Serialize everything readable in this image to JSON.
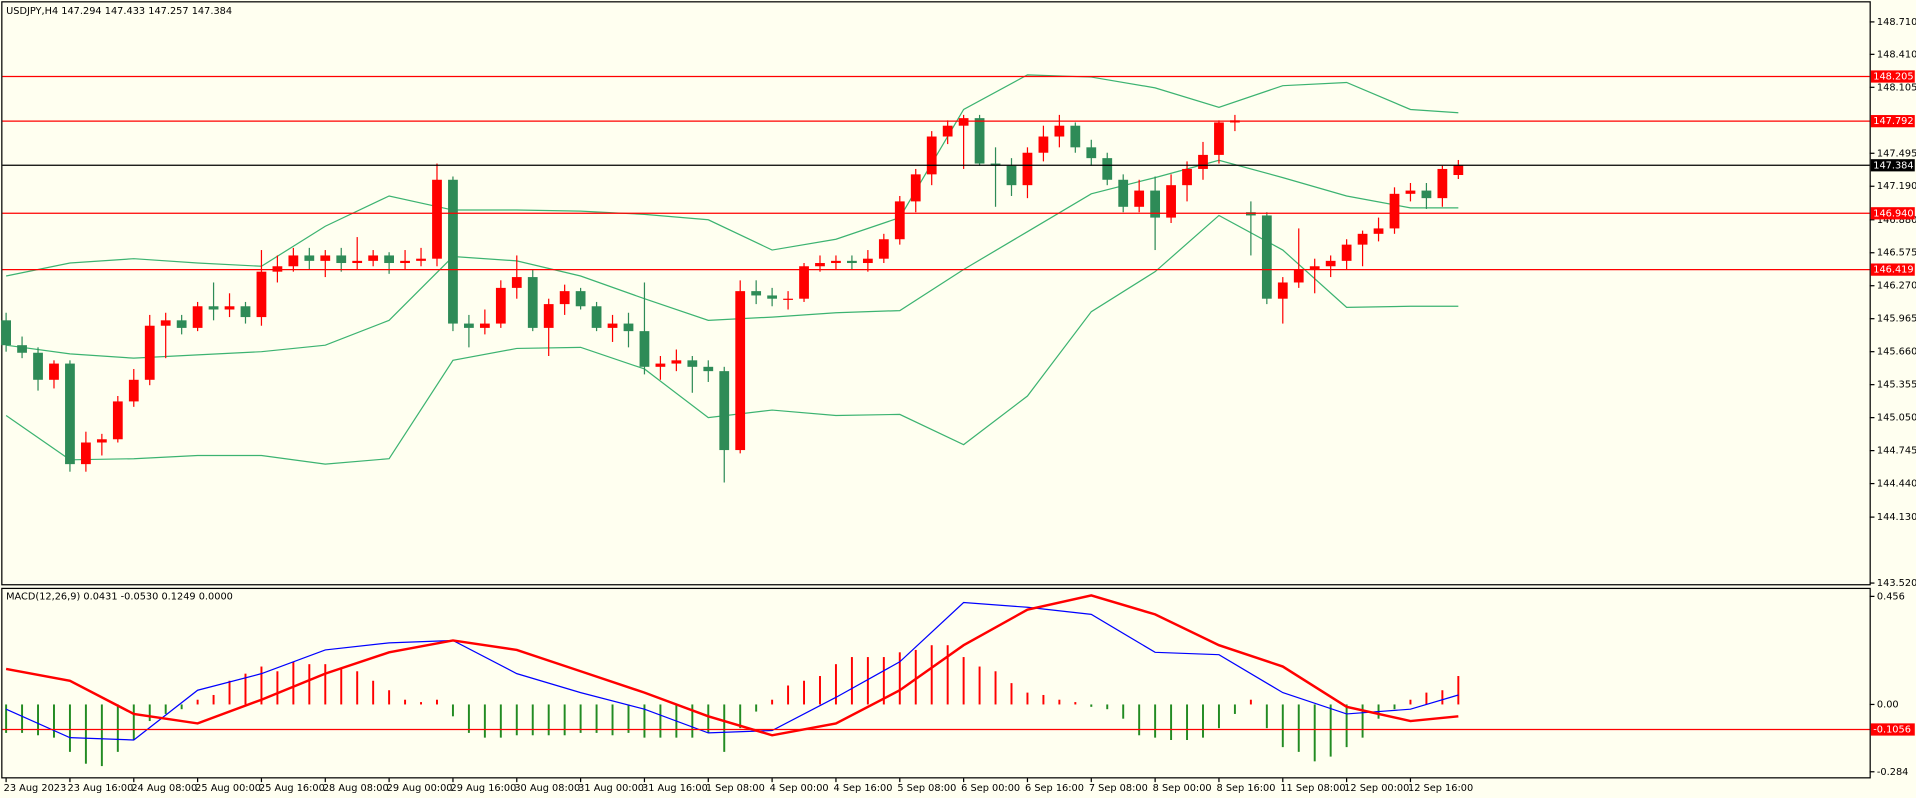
{
  "chart_data": [
    {
      "type": "candlestick",
      "title": "USDJPY,H4  147.294 147.433 147.257 147.384",
      "up_color": "#ff0000",
      "down_color": "#2e8b57",
      "candles": [
        [
          145.95,
          146.02,
          145.66,
          145.72
        ],
        [
          145.72,
          145.8,
          145.6,
          145.65
        ],
        [
          145.65,
          145.7,
          145.3,
          145.4
        ],
        [
          145.4,
          145.58,
          145.32,
          145.55
        ],
        [
          145.55,
          145.58,
          144.55,
          144.62
        ],
        [
          144.62,
          144.92,
          144.55,
          144.82
        ],
        [
          144.82,
          144.9,
          144.7,
          144.85
        ],
        [
          144.85,
          145.25,
          144.82,
          145.2
        ],
        [
          145.2,
          145.5,
          145.15,
          145.4
        ],
        [
          145.4,
          146.0,
          145.35,
          145.9
        ],
        [
          145.9,
          146.02,
          145.6,
          145.95
        ],
        [
          145.95,
          146.0,
          145.82,
          145.88
        ],
        [
          145.88,
          146.12,
          145.85,
          146.08
        ],
        [
          146.08,
          146.3,
          145.95,
          146.05
        ],
        [
          146.05,
          146.2,
          145.98,
          146.08
        ],
        [
          146.08,
          146.12,
          145.92,
          145.98
        ],
        [
          145.98,
          146.6,
          145.9,
          146.4
        ],
        [
          146.4,
          146.55,
          146.3,
          146.45
        ],
        [
          146.45,
          146.62,
          146.4,
          146.55
        ],
        [
          146.55,
          146.62,
          146.42,
          146.5
        ],
        [
          146.5,
          146.6,
          146.35,
          146.55
        ],
        [
          146.55,
          146.62,
          146.4,
          146.48
        ],
        [
          146.48,
          146.72,
          146.42,
          146.5
        ],
        [
          146.5,
          146.6,
          146.45,
          146.55
        ],
        [
          146.55,
          146.58,
          146.38,
          146.48
        ],
        [
          146.48,
          146.6,
          146.42,
          146.5
        ],
        [
          146.5,
          146.62,
          146.45,
          146.52
        ],
        [
          146.52,
          147.4,
          146.45,
          147.25
        ],
        [
          147.25,
          147.28,
          145.85,
          145.92
        ],
        [
          145.92,
          146.0,
          145.7,
          145.88
        ],
        [
          145.88,
          146.05,
          145.82,
          145.92
        ],
        [
          145.92,
          146.32,
          145.88,
          146.25
        ],
        [
          146.25,
          146.55,
          146.15,
          146.35
        ],
        [
          146.35,
          146.42,
          145.85,
          145.88
        ],
        [
          145.88,
          146.15,
          145.62,
          146.1
        ],
        [
          146.1,
          146.28,
          146.0,
          146.22
        ],
        [
          146.22,
          146.25,
          146.05,
          146.08
        ],
        [
          146.08,
          146.12,
          145.85,
          145.88
        ],
        [
          145.88,
          146.0,
          145.75,
          145.92
        ],
        [
          145.92,
          146.02,
          145.7,
          145.85
        ],
        [
          145.85,
          146.3,
          145.45,
          145.52
        ],
        [
          145.52,
          145.62,
          145.4,
          145.55
        ],
        [
          145.55,
          145.68,
          145.48,
          145.58
        ],
        [
          145.58,
          145.62,
          145.28,
          145.52
        ],
        [
          145.52,
          145.58,
          145.38,
          145.48
        ],
        [
          145.48,
          145.52,
          144.45,
          144.75
        ],
        [
          144.75,
          146.32,
          144.72,
          146.22
        ],
        [
          146.22,
          146.32,
          146.1,
          146.18
        ],
        [
          146.18,
          146.25,
          146.08,
          146.15
        ],
        [
          146.15,
          146.22,
          146.05,
          146.15
        ],
        [
          146.15,
          146.48,
          146.12,
          146.45
        ],
        [
          146.45,
          146.55,
          146.4,
          146.48
        ],
        [
          146.48,
          146.55,
          146.42,
          146.5
        ],
        [
          146.5,
          146.55,
          146.42,
          146.48
        ],
        [
          146.48,
          146.6,
          146.4,
          146.52
        ],
        [
          146.52,
          146.75,
          146.48,
          146.7
        ],
        [
          146.7,
          147.1,
          146.65,
          147.05
        ],
        [
          147.05,
          147.35,
          146.95,
          147.3
        ],
        [
          147.3,
          147.7,
          147.2,
          147.65
        ],
        [
          147.65,
          147.8,
          147.58,
          147.75
        ],
        [
          147.75,
          147.85,
          147.35,
          147.82
        ],
        [
          147.82,
          147.85,
          147.38,
          147.4
        ],
        [
          147.4,
          147.55,
          147.0,
          147.38
        ],
        [
          147.38,
          147.45,
          147.1,
          147.2
        ],
        [
          147.2,
          147.55,
          147.08,
          147.5
        ],
        [
          147.5,
          147.75,
          147.42,
          147.65
        ],
        [
          147.65,
          147.85,
          147.55,
          147.75
        ],
        [
          147.75,
          147.78,
          147.5,
          147.55
        ],
        [
          147.55,
          147.62,
          147.38,
          147.45
        ],
        [
          147.45,
          147.5,
          147.2,
          147.25
        ],
        [
          147.25,
          147.3,
          146.95,
          147.0
        ],
        [
          147.0,
          147.25,
          146.95,
          147.15
        ],
        [
          147.15,
          147.28,
          146.6,
          146.9
        ],
        [
          146.9,
          147.3,
          146.85,
          147.2
        ],
        [
          147.2,
          147.42,
          147.05,
          147.35
        ],
        [
          147.35,
          147.6,
          147.25,
          147.48
        ],
        [
          147.48,
          147.8,
          147.4,
          147.78
        ],
        [
          147.78,
          147.85,
          147.7,
          147.8
        ],
        [
          146.95,
          147.05,
          146.55,
          146.92
        ],
        [
          146.92,
          146.95,
          146.1,
          146.15
        ],
        [
          146.15,
          146.35,
          145.92,
          146.3
        ],
        [
          146.3,
          146.8,
          146.25,
          146.42
        ],
        [
          146.42,
          146.52,
          146.2,
          146.45
        ],
        [
          146.45,
          146.55,
          146.35,
          146.5
        ],
        [
          146.5,
          146.7,
          146.42,
          146.65
        ],
        [
          146.65,
          146.78,
          146.45,
          146.75
        ],
        [
          146.75,
          146.9,
          146.68,
          146.8
        ],
        [
          146.8,
          147.18,
          146.75,
          147.12
        ],
        [
          147.12,
          147.22,
          147.05,
          147.15
        ],
        [
          147.15,
          147.22,
          146.98,
          147.08
        ],
        [
          147.08,
          147.38,
          147.0,
          147.35
        ],
        [
          147.294,
          147.433,
          147.257,
          147.384
        ]
      ],
      "x": [
        0,
        4,
        8,
        12,
        16,
        20,
        24,
        28,
        32,
        36,
        40,
        44,
        48,
        52,
        56,
        60,
        64,
        68,
        72,
        76,
        80,
        84,
        88,
        91
      ],
      "series": [
        {
          "color": "#3cb371",
          "values": [
            146.36,
            146.48,
            146.52,
            146.48,
            146.45,
            146.82,
            147.1,
            146.97,
            146.97,
            146.96,
            146.93,
            146.88,
            146.6,
            146.7,
            146.9,
            147.9,
            148.22,
            148.2,
            148.1,
            147.92,
            148.12,
            148.15,
            147.9,
            147.87
          ]
        },
        {
          "color": "#3cb371",
          "values": [
            145.72,
            145.64,
            145.6,
            145.63,
            145.66,
            145.72,
            145.95,
            146.54,
            146.5,
            146.36,
            146.15,
            145.95,
            145.98,
            146.02,
            146.04,
            146.42,
            146.77,
            147.12,
            147.27,
            147.43,
            147.27,
            147.1,
            146.99,
            146.99
          ]
        },
        {
          "color": "#3cb371",
          "values": [
            145.07,
            144.66,
            144.67,
            144.7,
            144.7,
            144.62,
            144.67,
            145.58,
            145.69,
            145.7,
            145.5,
            145.05,
            145.12,
            145.07,
            145.08,
            144.8,
            145.25,
            146.03,
            146.4,
            146.92,
            146.6,
            146.07,
            146.08,
            146.08
          ]
        }
      ],
      "ylim": [
        143.51,
        148.89
      ],
      "yticks": [
        {
          "value": 148.71,
          "label": "148.710"
        },
        {
          "value": 148.41,
          "label": "148.410"
        },
        148.105,
        147.495,
        {
          "value": 147.19,
          "label": "147.190"
        },
        {
          "value": 146.88,
          "label": "146.880"
        },
        146.575,
        {
          "value": 146.27,
          "label": "146.270"
        },
        145.965,
        {
          "value": 145.66,
          "label": "145.660"
        },
        145.355,
        {
          "value": 145.05,
          "label": "145.050"
        },
        144.745,
        {
          "value": 144.44,
          "label": "144.440"
        },
        {
          "value": 144.13,
          "label": "144.130"
        },
        {
          "value": 143.52,
          "label": "143.520"
        }
      ],
      "levels": [
        148.205,
        147.792,
        {
          "value": 146.94,
          "label": "146.940"
        },
        146.419
      ],
      "level_color": "#ff0000",
      "price": 147.384,
      "price_color": "#000000",
      "time_labels": [
        "23 Aug 2023",
        "23 Aug 16:00",
        "24 Aug 08:00",
        "25 Aug 00:00",
        "25 Aug 16:00",
        "28 Aug 08:00",
        "29 Aug 00:00",
        "29 Aug 16:00",
        "30 Aug 08:00",
        "31 Aug 00:00",
        "31 Aug 16:00",
        "1 Sep 08:00",
        "4 Sep 00:00",
        "4 Sep 16:00",
        "5 Sep 08:00",
        "6 Sep 00:00",
        "6 Sep 16:00",
        "7 Sep 08:00",
        "8 Sep 00:00",
        "8 Sep 16:00",
        "11 Sep 08:00",
        "12 Sep 00:00",
        "12 Sep 16:00"
      ]
    },
    {
      "type": "macd",
      "title": "MACD(12,26,9) 0.0431 -0.0530 0.1249 0.0000",
      "up_color": "#ff0000",
      "down_color": "#228b22",
      "histogram": [
        -0.12,
        -0.12,
        -0.13,
        -0.14,
        -0.2,
        -0.25,
        -0.26,
        -0.2,
        -0.15,
        -0.07,
        -0.04,
        -0.02,
        0.02,
        0.04,
        0.1,
        0.13,
        0.16,
        0.14,
        0.18,
        0.17,
        0.17,
        0.15,
        0.14,
        0.1,
        0.06,
        0.02,
        0.01,
        0.02,
        -0.05,
        -0.12,
        -0.14,
        -0.14,
        -0.13,
        -0.13,
        -0.13,
        -0.13,
        -0.12,
        -0.12,
        -0.13,
        -0.12,
        -0.14,
        -0.14,
        -0.14,
        -0.14,
        -0.12,
        -0.2,
        -0.1,
        -0.03,
        0.02,
        0.08,
        0.1,
        0.12,
        0.17,
        0.2,
        0.2,
        0.2,
        0.22,
        0.23,
        0.25,
        0.25,
        0.2,
        0.16,
        0.14,
        0.09,
        0.05,
        0.04,
        0.02,
        0.01,
        -0.01,
        -0.02,
        -0.06,
        -0.13,
        -0.14,
        -0.15,
        -0.15,
        -0.14,
        -0.1,
        -0.04,
        0.02,
        -0.1,
        -0.18,
        -0.2,
        -0.24,
        -0.22,
        -0.18,
        -0.14,
        -0.06,
        -0.02,
        0.02,
        0.05,
        0.06,
        0.12
      ],
      "x": [
        0,
        4,
        8,
        12,
        16,
        20,
        24,
        28,
        32,
        36,
        40,
        44,
        48,
        52,
        56,
        60,
        64,
        68,
        72,
        76,
        80,
        84,
        88,
        91
      ],
      "series": [
        {
          "color": "#0000ff",
          "width": 1,
          "values": [
            -0.02,
            -0.14,
            -0.15,
            0.06,
            0.13,
            0.23,
            0.26,
            0.27,
            0.13,
            0.05,
            -0.02,
            -0.12,
            -0.11,
            0.03,
            0.18,
            0.43,
            0.41,
            0.38,
            0.22,
            0.21,
            0.05,
            -0.04,
            -0.02,
            0.04
          ]
        },
        {
          "color": "#ff0000",
          "width": 2,
          "values": [
            0.15,
            0.1,
            -0.04,
            -0.08,
            0.02,
            0.13,
            0.22,
            0.27,
            0.23,
            0.14,
            0.05,
            -0.05,
            -0.13,
            -0.08,
            0.06,
            0.25,
            0.4,
            0.46,
            0.38,
            0.25,
            0.16,
            -0.01,
            -0.07,
            -0.05
          ]
        }
      ],
      "ylim": [
        -0.307,
        0.487
      ],
      "yticks": [
        0.456,
        {
          "value": 0,
          "label": "0.00"
        },
        -0.284
      ],
      "levels": [
        -0.1056
      ],
      "level_color": "#ff0000"
    }
  ]
}
